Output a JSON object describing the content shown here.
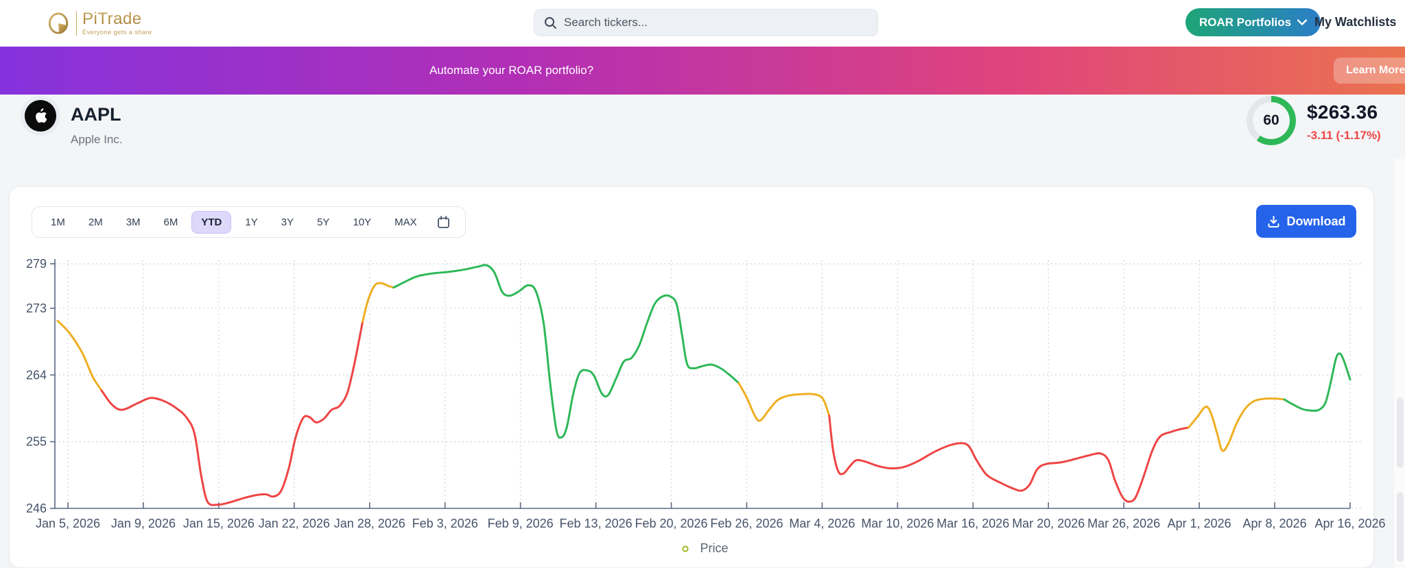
{
  "header": {
    "logo": {
      "name": "PiTrade",
      "tagline": "Everyone gets a share"
    },
    "search_placeholder": "Search tickers...",
    "roar_button": "ROAR Portfolios",
    "watchlists": "My Watchlists"
  },
  "banner": {
    "text": "Automate your ROAR portfolio?",
    "cta": "Learn More"
  },
  "stock": {
    "symbol": "AAPL",
    "company": "Apple Inc.",
    "score": "60",
    "price": "$263.36",
    "change": "-3.11 (-1.17%)",
    "change_color": "#ef4444",
    "score_color": "#2eb857"
  },
  "toolbar": {
    "ranges": [
      "1M",
      "2M",
      "3M",
      "6M",
      "YTD",
      "1Y",
      "3Y",
      "5Y",
      "10Y",
      "MAX"
    ],
    "active_range": "YTD",
    "download_label": "Download"
  },
  "chart_data": {
    "type": "line",
    "title": "",
    "series_name": "Price",
    "legend": [
      "Price"
    ],
    "grid": true,
    "ylim": [
      246,
      279
    ],
    "y_ticks": [
      279,
      273,
      264,
      255,
      246
    ],
    "x_labels": [
      "Jan 5, 2026",
      "Jan 9, 2026",
      "Jan 15, 2026",
      "Jan 22, 2026",
      "Jan 28, 2026",
      "Feb 3, 2026",
      "Feb 9, 2026",
      "Feb 13, 2026",
      "Feb 20, 2026",
      "Feb 26, 2026",
      "Mar 4, 2026",
      "Mar 10, 2026",
      "Mar 16, 2026",
      "Mar 20, 2026",
      "Mar 26, 2026",
      "Apr 1, 2026",
      "Apr 8, 2026",
      "Apr 16, 2026"
    ],
    "colors": {
      "red": "#ef4444",
      "amber": "#efae20",
      "green": "#2eb857"
    },
    "segments": [
      {
        "color": "amber",
        "pts": [
          [
            0,
            271.3
          ],
          [
            0.009,
            269.7
          ],
          [
            0.019,
            267.0
          ],
          [
            0.027,
            263.8
          ],
          [
            0.034,
            261.9
          ]
        ]
      },
      {
        "color": "red",
        "pts": [
          [
            0.034,
            261.9
          ],
          [
            0.042,
            260.0
          ],
          [
            0.05,
            259.3
          ],
          [
            0.062,
            260.2
          ],
          [
            0.072,
            260.9
          ],
          [
            0.082,
            260.5
          ],
          [
            0.092,
            259.5
          ],
          [
            0.1,
            258.2
          ],
          [
            0.106,
            256.0
          ],
          [
            0.111,
            250.5
          ],
          [
            0.116,
            246.9
          ],
          [
            0.124,
            246.5
          ],
          [
            0.133,
            246.8
          ],
          [
            0.144,
            247.4
          ],
          [
            0.154,
            247.8
          ],
          [
            0.161,
            247.9
          ],
          [
            0.167,
            247.6
          ],
          [
            0.173,
            248.4
          ],
          [
            0.179,
            251.5
          ],
          [
            0.184,
            255.5
          ],
          [
            0.19,
            258.2
          ],
          [
            0.195,
            258.3
          ],
          [
            0.2,
            257.6
          ],
          [
            0.206,
            258.1
          ],
          [
            0.212,
            259.3
          ],
          [
            0.218,
            259.8
          ],
          [
            0.224,
            261.5
          ],
          [
            0.229,
            265.0
          ],
          [
            0.233,
            268.5
          ],
          [
            0.236,
            271.2
          ]
        ]
      },
      {
        "color": "amber",
        "pts": [
          [
            0.236,
            271.2
          ],
          [
            0.24,
            274.0
          ],
          [
            0.245,
            276.0
          ],
          [
            0.25,
            276.4
          ],
          [
            0.256,
            276.0
          ],
          [
            0.26,
            275.8
          ]
        ]
      },
      {
        "color": "green",
        "pts": [
          [
            0.26,
            275.8
          ],
          [
            0.268,
            276.5
          ],
          [
            0.278,
            277.3
          ],
          [
            0.29,
            277.7
          ],
          [
            0.302,
            277.9
          ],
          [
            0.314,
            278.2
          ],
          [
            0.325,
            278.6
          ],
          [
            0.332,
            278.8
          ],
          [
            0.338,
            277.8
          ],
          [
            0.344,
            275.2
          ],
          [
            0.35,
            274.7
          ],
          [
            0.357,
            275.3
          ],
          [
            0.364,
            276.1
          ],
          [
            0.37,
            275.3
          ],
          [
            0.376,
            271.0
          ],
          [
            0.381,
            263.0
          ],
          [
            0.386,
            256.5
          ],
          [
            0.39,
            255.6
          ],
          [
            0.394,
            257.0
          ],
          [
            0.399,
            261.5
          ],
          [
            0.404,
            264.3
          ],
          [
            0.41,
            264.6
          ],
          [
            0.415,
            263.9
          ],
          [
            0.421,
            261.5
          ],
          [
            0.426,
            261.3
          ],
          [
            0.432,
            263.5
          ],
          [
            0.438,
            265.8
          ],
          [
            0.444,
            266.3
          ],
          [
            0.45,
            268.0
          ],
          [
            0.456,
            271.0
          ],
          [
            0.462,
            273.6
          ],
          [
            0.468,
            274.6
          ],
          [
            0.474,
            274.6
          ],
          [
            0.479,
            273.5
          ],
          [
            0.483,
            269.5
          ],
          [
            0.487,
            265.5
          ],
          [
            0.492,
            264.9
          ],
          [
            0.499,
            265.2
          ],
          [
            0.506,
            265.4
          ],
          [
            0.513,
            264.9
          ],
          [
            0.52,
            264.0
          ],
          [
            0.527,
            262.9
          ]
        ]
      },
      {
        "color": "amber",
        "pts": [
          [
            0.527,
            262.9
          ],
          [
            0.533,
            261.0
          ],
          [
            0.54,
            258.3
          ],
          [
            0.544,
            257.9
          ],
          [
            0.55,
            259.2
          ],
          [
            0.557,
            260.6
          ],
          [
            0.565,
            261.2
          ],
          [
            0.575,
            261.4
          ],
          [
            0.585,
            261.4
          ],
          [
            0.592,
            260.8
          ],
          [
            0.597,
            258.5
          ]
        ]
      },
      {
        "color": "red",
        "pts": [
          [
            0.597,
            258.5
          ],
          [
            0.6,
            253.8
          ],
          [
            0.604,
            251.0
          ],
          [
            0.608,
            250.7
          ],
          [
            0.613,
            251.7
          ],
          [
            0.618,
            252.5
          ],
          [
            0.625,
            252.3
          ],
          [
            0.635,
            251.7
          ],
          [
            0.645,
            251.4
          ],
          [
            0.655,
            251.6
          ],
          [
            0.666,
            252.4
          ],
          [
            0.678,
            253.6
          ],
          [
            0.69,
            254.5
          ],
          [
            0.699,
            254.8
          ],
          [
            0.705,
            254.4
          ],
          [
            0.711,
            252.5
          ],
          [
            0.719,
            250.5
          ],
          [
            0.729,
            249.5
          ],
          [
            0.739,
            248.7
          ],
          [
            0.746,
            248.4
          ],
          [
            0.752,
            249.2
          ],
          [
            0.758,
            251.3
          ],
          [
            0.765,
            252.0
          ],
          [
            0.776,
            252.2
          ],
          [
            0.788,
            252.7
          ],
          [
            0.799,
            253.2
          ],
          [
            0.807,
            253.4
          ],
          [
            0.813,
            252.5
          ],
          [
            0.818,
            249.8
          ],
          [
            0.824,
            247.5
          ],
          [
            0.829,
            246.9
          ],
          [
            0.834,
            247.5
          ],
          [
            0.84,
            250.2
          ],
          [
            0.847,
            253.8
          ],
          [
            0.853,
            255.7
          ],
          [
            0.861,
            256.3
          ],
          [
            0.869,
            256.7
          ],
          [
            0.875,
            256.9
          ]
        ]
      },
      {
        "color": "amber",
        "pts": [
          [
            0.875,
            256.9
          ],
          [
            0.882,
            258.4
          ],
          [
            0.888,
            259.7
          ],
          [
            0.892,
            259.0
          ],
          [
            0.897,
            256.2
          ],
          [
            0.901,
            253.8
          ],
          [
            0.906,
            254.8
          ],
          [
            0.912,
            257.4
          ],
          [
            0.919,
            259.5
          ],
          [
            0.926,
            260.5
          ],
          [
            0.934,
            260.8
          ],
          [
            0.943,
            260.8
          ],
          [
            0.949,
            260.7
          ]
        ]
      },
      {
        "color": "green",
        "pts": [
          [
            0.949,
            260.7
          ],
          [
            0.956,
            260.0
          ],
          [
            0.963,
            259.4
          ],
          [
            0.97,
            259.2
          ],
          [
            0.976,
            259.3
          ],
          [
            0.981,
            260.3
          ],
          [
            0.985,
            263.0
          ],
          [
            0.989,
            266.2
          ],
          [
            0.992,
            266.9
          ],
          [
            0.995,
            266.0
          ],
          [
            1,
            263.4
          ]
        ]
      }
    ]
  },
  "legend": {
    "price_label": "Price"
  }
}
